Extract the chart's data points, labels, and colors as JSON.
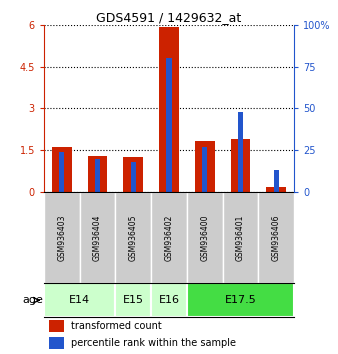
{
  "title": "GDS4591 / 1429632_at",
  "samples": [
    "GSM936403",
    "GSM936404",
    "GSM936405",
    "GSM936402",
    "GSM936400",
    "GSM936401",
    "GSM936406"
  ],
  "transformed_count": [
    1.62,
    1.28,
    1.25,
    5.92,
    1.82,
    1.9,
    0.18
  ],
  "percentile_rank": [
    24,
    20,
    18,
    80,
    27,
    48,
    13
  ],
  "age_group_spans": [
    {
      "label": "E14",
      "start": 0,
      "end": 1,
      "color": "#ccffcc"
    },
    {
      "label": "E15",
      "start": 2,
      "end": 2,
      "color": "#ccffcc"
    },
    {
      "label": "E16",
      "start": 3,
      "end": 3,
      "color": "#ccffcc"
    },
    {
      "label": "E17.5",
      "start": 4,
      "end": 6,
      "color": "#44dd44"
    }
  ],
  "y_left_ticks": [
    0,
    1.5,
    3,
    4.5,
    6
  ],
  "y_left_labels": [
    "0",
    "1.5",
    "3",
    "4.5",
    "6"
  ],
  "y_right_ticks": [
    0,
    25,
    50,
    75,
    100
  ],
  "y_right_labels": [
    "0",
    "25",
    "50",
    "75",
    "100%"
  ],
  "bar_color_red": "#cc2200",
  "bar_color_blue": "#2255cc",
  "sample_box_color": "#cccccc",
  "left_axis_color": "#cc2200",
  "right_axis_color": "#2255cc",
  "fig_width": 3.38,
  "fig_height": 3.54,
  "dpi": 100
}
